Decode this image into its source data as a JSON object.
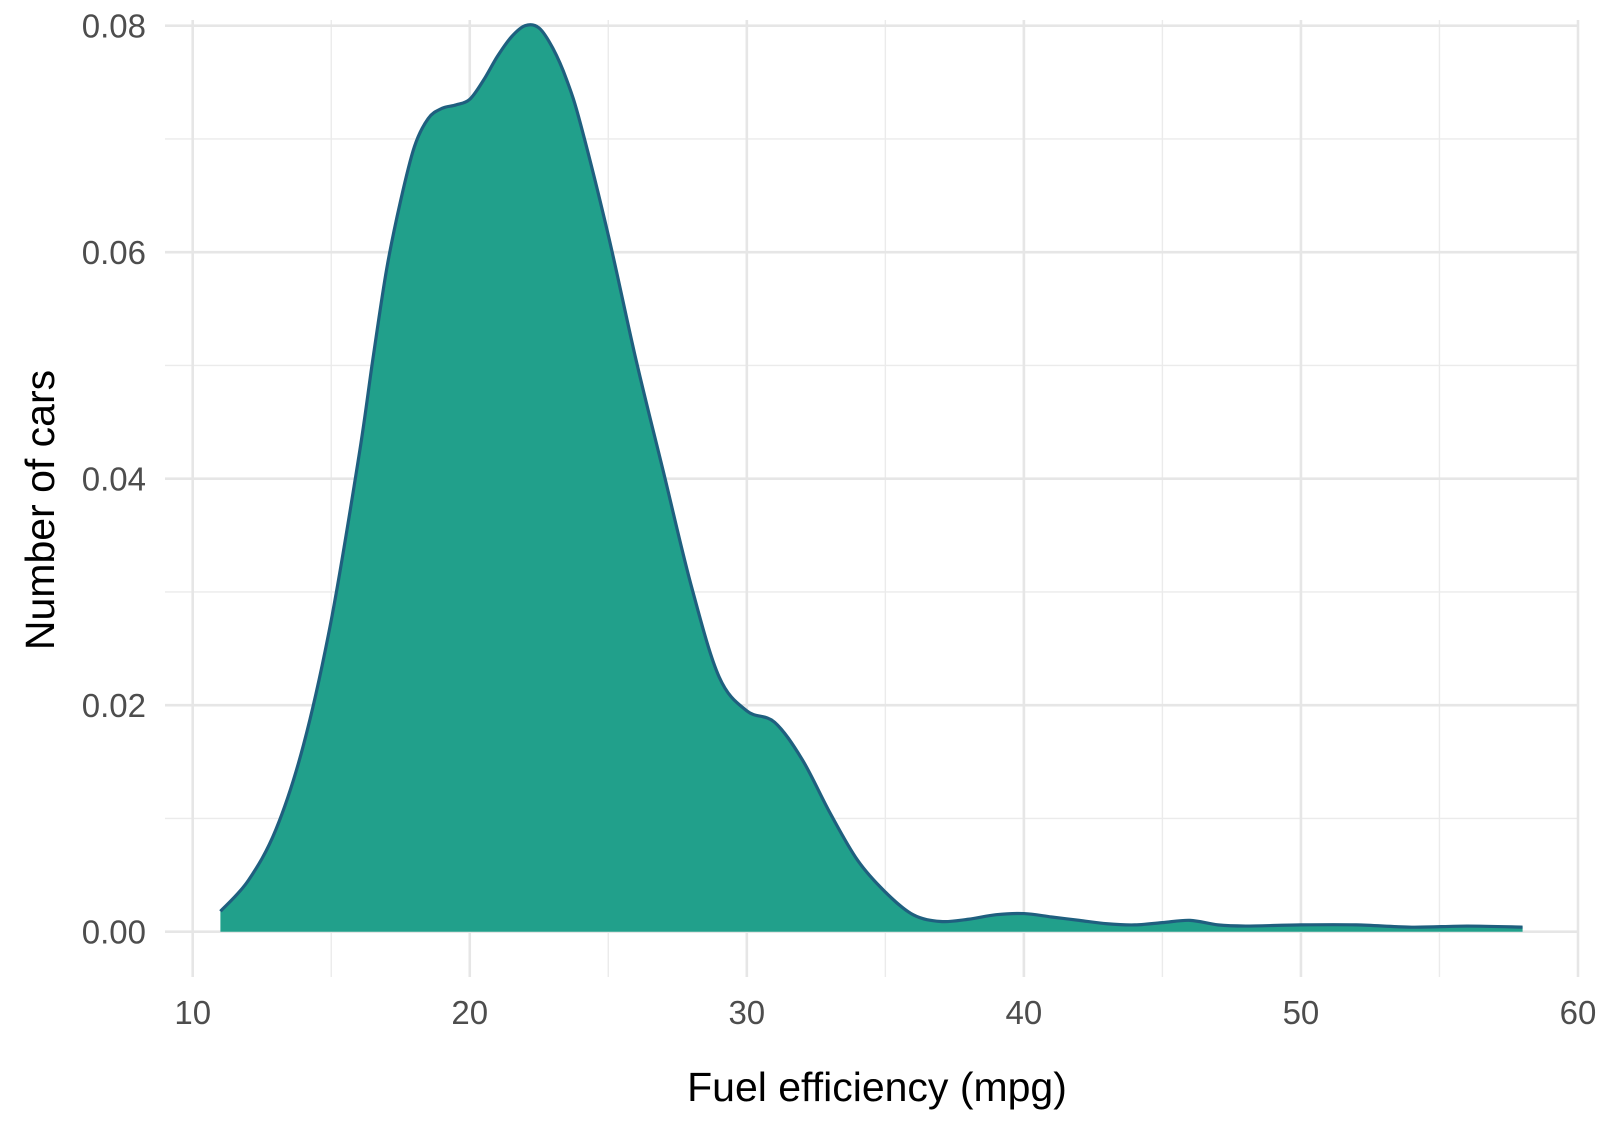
{
  "chart_data": {
    "type": "area",
    "title": "",
    "xlabel": "Fuel efficiency (mpg)",
    "ylabel": "Number of cars",
    "xlim": [
      9,
      60
    ],
    "ylim": [
      -0.004,
      0.0805
    ],
    "x_ticks": [
      10,
      20,
      30,
      40,
      50,
      60
    ],
    "x_minor_ticks": [
      15,
      25,
      35,
      45,
      55
    ],
    "y_ticks": [
      0.0,
      0.02,
      0.04,
      0.06,
      0.08
    ],
    "y_minor_ticks": [
      0.01,
      0.03,
      0.05,
      0.07
    ],
    "x_tick_labels": [
      "10",
      "20",
      "30",
      "40",
      "50",
      "60"
    ],
    "y_tick_labels": [
      "0.00",
      "0.02",
      "0.04",
      "0.06",
      "0.08"
    ],
    "grid": true,
    "legend": "none",
    "fill_color": "#21A08B",
    "line_color": "#1F5F7F",
    "series": [
      {
        "x": [
          11,
          12,
          13,
          14,
          15,
          16,
          16.5,
          17,
          17.5,
          18,
          18.5,
          19,
          19.5,
          20,
          20.5,
          21,
          21.5,
          22,
          22.5,
          23,
          23.5,
          24,
          25,
          26,
          27,
          28,
          29,
          30,
          31,
          32,
          33,
          34,
          35,
          36,
          37,
          38,
          39,
          40,
          41,
          42,
          43,
          44,
          45,
          46,
          47,
          48,
          50,
          52,
          54,
          56,
          58
        ],
        "y": [
          0.0018,
          0.0045,
          0.009,
          0.0165,
          0.0275,
          0.042,
          0.0505,
          0.0585,
          0.0645,
          0.0693,
          0.0718,
          0.0727,
          0.073,
          0.0735,
          0.0752,
          0.0773,
          0.079,
          0.08,
          0.0798,
          0.078,
          0.0752,
          0.0713,
          0.0615,
          0.0505,
          0.0405,
          0.0305,
          0.0225,
          0.0195,
          0.0185,
          0.0152,
          0.0105,
          0.0063,
          0.0035,
          0.0015,
          0.0009,
          0.0011,
          0.0015,
          0.0016,
          0.0013,
          0.001,
          0.0007,
          0.0006,
          0.0008,
          0.001,
          0.0006,
          0.0005,
          0.0006,
          0.0006,
          0.0004,
          0.0005,
          0.0004
        ]
      }
    ]
  }
}
